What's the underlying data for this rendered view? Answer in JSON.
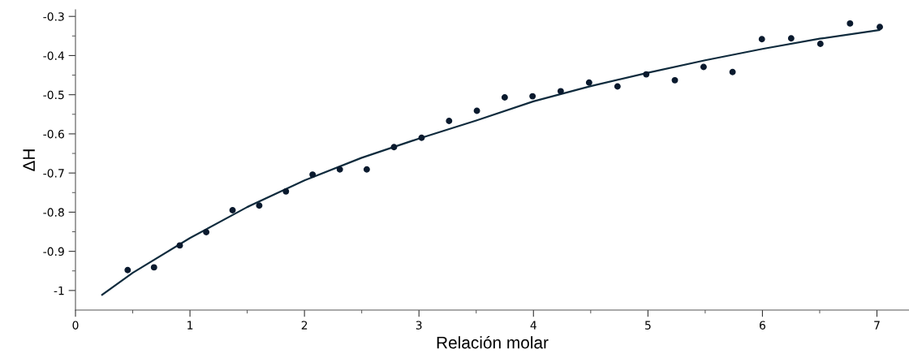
{
  "chart_data": {
    "type": "scatter",
    "xlabel": "Relación molar",
    "ylabel": "ΔH",
    "xlim": [
      0,
      7.28
    ],
    "ylim": [
      -1.05,
      -0.283
    ],
    "xticks": [
      0,
      1,
      2,
      3,
      4,
      5,
      6,
      7
    ],
    "yticks": [
      -1,
      -0.9,
      -0.8,
      -0.7,
      -0.6,
      -0.5,
      -0.4,
      -0.3
    ],
    "grid": false,
    "marker": "circle",
    "series": [
      {
        "color": "#0a1a2e",
        "x": [
          0.456,
          0.686,
          0.911,
          1.142,
          1.372,
          1.605,
          1.838,
          2.071,
          2.309,
          2.544,
          2.782,
          3.023,
          3.263,
          3.506,
          3.749,
          3.992,
          4.238,
          4.486,
          4.734,
          4.985,
          5.235,
          5.486,
          5.739,
          5.995,
          6.251,
          6.506,
          6.765,
          7.025
        ],
        "values": [
          -0.948,
          -0.941,
          -0.885,
          -0.851,
          -0.795,
          -0.783,
          -0.747,
          -0.704,
          -0.691,
          -0.691,
          -0.634,
          -0.61,
          -0.567,
          -0.541,
          -0.507,
          -0.504,
          -0.491,
          -0.469,
          -0.479,
          -0.448,
          -0.463,
          -0.429,
          -0.442,
          -0.358,
          -0.356,
          -0.37,
          -0.318,
          -0.327
        ]
      },
      {
        "type": "line",
        "color": "#0f2b3d",
        "marker": "none",
        "line_style": "solid",
        "x": [
          0.233,
          0.5,
          1,
          1.5,
          2,
          2.5,
          3,
          3.5,
          4,
          4.5,
          5,
          5.5,
          6,
          6.5,
          7.02
        ],
        "values": [
          -1.011,
          -0.955,
          -0.866,
          -0.787,
          -0.719,
          -0.661,
          -0.612,
          -0.566,
          -0.517,
          -0.478,
          -0.444,
          -0.412,
          -0.383,
          -0.357,
          -0.335
        ]
      }
    ]
  }
}
